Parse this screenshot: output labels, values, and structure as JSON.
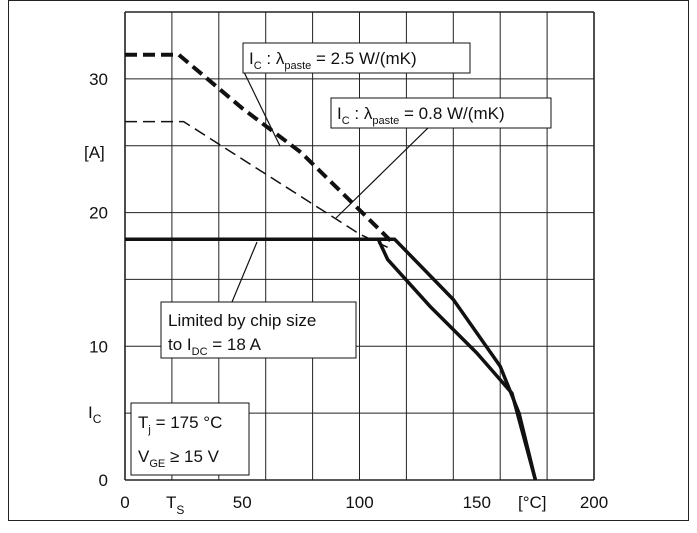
{
  "chart_data": {
    "type": "line",
    "x_axis": {
      "range": [
        0,
        200
      ],
      "tick_values": [
        0,
        50,
        100,
        150,
        200
      ],
      "tick_labels": [
        "0",
        "50",
        "100",
        "150",
        "200"
      ],
      "label_main": "T",
      "label_sub": "S",
      "unit_label": "[°C]"
    },
    "y_axis": {
      "range": [
        0,
        35
      ],
      "tick_values": [
        0,
        10,
        20,
        30
      ],
      "tick_labels": [
        "0",
        "10",
        "20",
        "30"
      ],
      "label_main": "I",
      "label_sub": "C",
      "unit_label": "[A]"
    },
    "grid": true,
    "series": [
      {
        "legend_parts": [
          "I",
          "C",
          " : λ",
          "paste",
          " = 2.5 W/(mK)"
        ],
        "style": "dashed-bold",
        "x": [
          0,
          23,
          50,
          75,
          100,
          115
        ],
        "y": [
          31.8,
          31.8,
          27.8,
          24.5,
          20.2,
          17.6
        ]
      },
      {
        "legend_parts": [
          "I",
          "C",
          " : λ",
          "paste",
          " = 0.8 W/(mK)"
        ],
        "style": "dashed-thin",
        "x": [
          0,
          25,
          50,
          75,
          100,
          112
        ],
        "y": [
          26.8,
          26.8,
          24.0,
          21.2,
          18.4,
          17.4
        ]
      },
      {
        "legend_parts": [
          "I",
          "C",
          " : λ",
          "paste",
          " = 2.5 W/(mK)"
        ],
        "style": "solid-bold",
        "x": [
          0,
          115,
          140,
          160,
          168,
          175
        ],
        "y": [
          18,
          18,
          13.5,
          8.5,
          5,
          0
        ]
      },
      {
        "legend_parts": [
          "I",
          "C",
          " : λ",
          "paste",
          " = 0.8 W/(mK)"
        ],
        "style": "solid-bold",
        "x": [
          0,
          108,
          112,
          130,
          150,
          165,
          175
        ],
        "y": [
          18,
          18,
          16.5,
          13.0,
          9.5,
          6.5,
          0
        ]
      }
    ],
    "annotations": [
      {
        "parts": [
          "Limited by chip size"
        ]
      },
      {
        "parts": [
          "to I",
          "DC",
          " = 18 A"
        ]
      },
      {
        "parts": [
          "T",
          "j",
          " = 175 °C"
        ]
      },
      {
        "parts": [
          "V",
          "GE",
          " ≥ 15 V"
        ]
      }
    ]
  }
}
